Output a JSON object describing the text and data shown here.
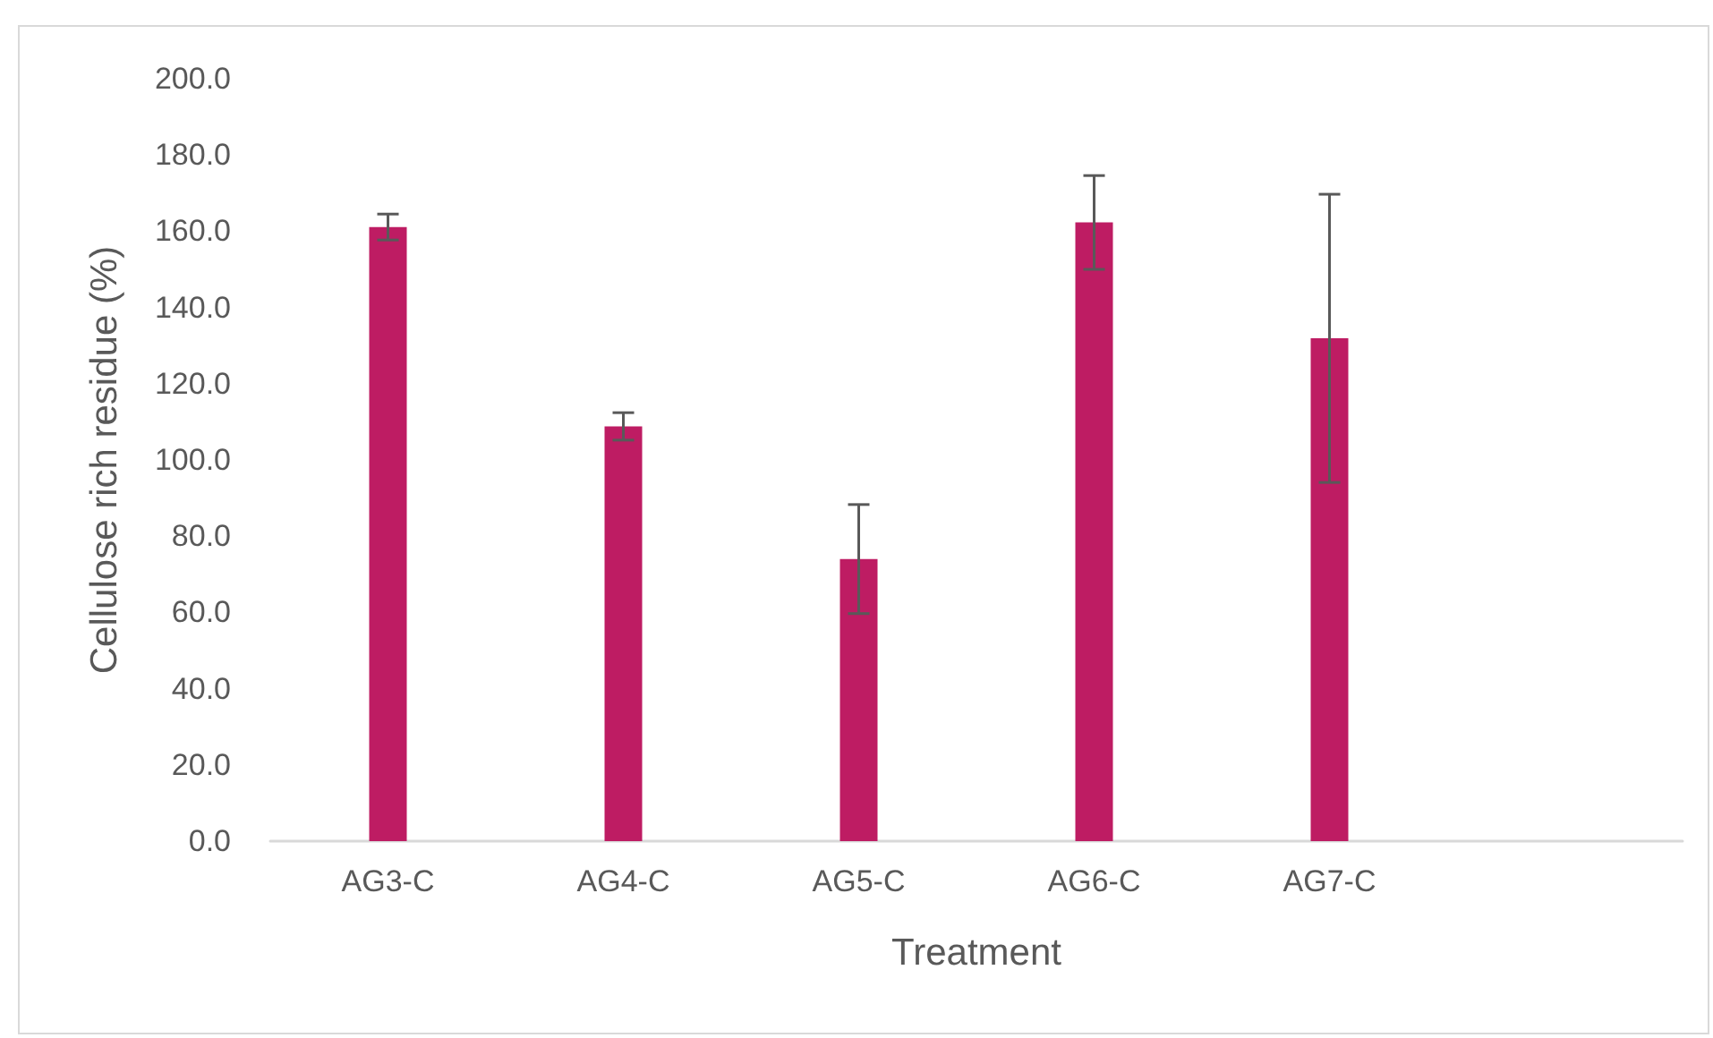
{
  "chart_data": {
    "type": "bar",
    "xlabel": "Treatment",
    "ylabel": "Cellulose rich residue (%)",
    "categories": [
      "AG3-C",
      "AG4-C",
      "AG5-C",
      "AG6-C",
      "AG7-C",
      null
    ],
    "values": [
      161.1,
      108.8,
      74.0,
      162.3,
      131.9,
      null
    ],
    "errors": [
      3.4,
      3.6,
      14.3,
      12.3,
      37.8,
      null
    ],
    "color": "#be1c63",
    "ylim": [
      0,
      200
    ],
    "yticks": [
      {
        "value": 0,
        "label": "0.0"
      },
      {
        "value": 20,
        "label": "20.0"
      },
      {
        "value": 40,
        "label": "40.0"
      },
      {
        "value": 60,
        "label": "60.0"
      },
      {
        "value": 80,
        "label": "80.0"
      },
      {
        "value": 100,
        "label": "100.0"
      },
      {
        "value": 120,
        "label": "120.0"
      },
      {
        "value": 140,
        "label": "140.0"
      },
      {
        "value": 160,
        "label": "160.0"
      },
      {
        "value": 180,
        "label": "180.0"
      },
      {
        "value": 200,
        "label": "200.0"
      }
    ],
    "grid": false
  }
}
